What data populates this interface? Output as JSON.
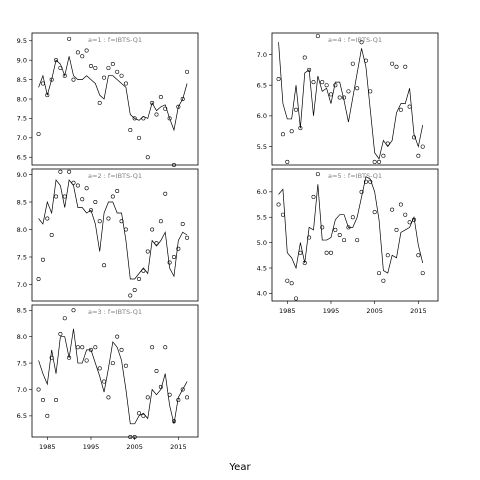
{
  "chart_data": {
    "type": "line",
    "xlabel": "Year",
    "x_tick_labels": [
      "1985",
      "1995",
      "2005",
      "2015"
    ],
    "years": [
      1983,
      1984,
      1985,
      1986,
      1987,
      1988,
      1989,
      1990,
      1991,
      1992,
      1993,
      1994,
      1995,
      1996,
      1997,
      1998,
      1999,
      2000,
      2001,
      2002,
      2003,
      2004,
      2005,
      2006,
      2007,
      2008,
      2009,
      2010,
      2011,
      2012,
      2013,
      2014,
      2015,
      2016,
      2017
    ],
    "panels": [
      {
        "label": "a=1 : f=IBTS-Q1",
        "ylim": [
          6.3,
          9.7
        ],
        "yticks": [
          "6.5",
          "7.0",
          "7.5",
          "8.0",
          "8.5",
          "9.0",
          "9.5"
        ],
        "fitted": [
          8.3,
          8.6,
          8.1,
          8.5,
          9.0,
          8.9,
          8.6,
          9.1,
          8.6,
          8.5,
          8.5,
          8.6,
          8.5,
          8.4,
          8.1,
          8.0,
          8.6,
          8.6,
          8.5,
          8.4,
          8.3,
          7.6,
          7.5,
          7.45,
          7.55,
          7.5,
          7.9,
          7.7,
          7.8,
          7.85,
          7.5,
          7.2,
          7.8,
          8.0,
          8.4
        ],
        "observed": [
          7.1,
          8.4,
          8.1,
          8.5,
          9.0,
          8.8,
          8.6,
          9.55,
          8.5,
          9.2,
          9.1,
          9.25,
          8.85,
          8.8,
          7.9,
          8.55,
          8.8,
          8.9,
          8.7,
          8.6,
          8.4,
          7.2,
          7.5,
          7.0,
          7.5,
          6.5,
          7.9,
          7.6,
          8.05,
          7.75,
          7.5,
          6.3,
          7.8,
          8.0,
          8.7
        ]
      },
      {
        "label": "a=2 : f=IBTS-Q1",
        "ylim": [
          6.7,
          9.1
        ],
        "yticks": [
          "7.0",
          "7.5",
          "8.0",
          "8.5",
          "9.0"
        ],
        "fitted": [
          8.2,
          8.1,
          8.5,
          8.3,
          8.9,
          8.8,
          8.4,
          8.9,
          8.8,
          8.4,
          8.4,
          8.3,
          8.35,
          8.1,
          7.6,
          8.3,
          8.5,
          8.5,
          8.3,
          8.3,
          7.8,
          7.1,
          7.1,
          7.2,
          7.3,
          7.2,
          7.8,
          7.7,
          7.8,
          7.95,
          7.3,
          7.15,
          7.8,
          7.95,
          7.9
        ],
        "observed": [
          7.1,
          7.45,
          8.2,
          7.9,
          8.6,
          9.05,
          8.6,
          9.05,
          8.85,
          8.8,
          8.55,
          8.75,
          8.35,
          8.5,
          8.15,
          7.35,
          8.2,
          8.6,
          8.7,
          8.15,
          8.0,
          6.8,
          6.9,
          7.1,
          7.25,
          7.6,
          8.0,
          7.75,
          8.15,
          8.65,
          7.4,
          7.5,
          7.65,
          8.1,
          7.85
        ]
      },
      {
        "label": "a=3 : f=IBTS-Q1",
        "ylim": [
          6.1,
          8.6
        ],
        "yticks": [
          "6.5",
          "7.0",
          "7.5",
          "8.0",
          "8.5"
        ],
        "fitted": [
          7.55,
          7.3,
          7.1,
          7.75,
          7.3,
          8.0,
          8.0,
          7.6,
          8.15,
          7.5,
          7.5,
          7.75,
          7.75,
          7.5,
          7.25,
          6.95,
          7.4,
          7.9,
          7.8,
          7.55,
          7.0,
          6.35,
          6.35,
          6.5,
          6.55,
          6.45,
          7.0,
          6.9,
          7.0,
          7.3,
          6.7,
          6.35,
          6.85,
          7.0,
          7.15
        ],
        "observed": [
          7.0,
          6.8,
          6.5,
          7.6,
          6.8,
          8.05,
          8.35,
          7.6,
          8.5,
          7.8,
          7.8,
          7.55,
          7.75,
          7.8,
          7.4,
          7.15,
          6.85,
          7.5,
          8.0,
          7.75,
          7.45,
          6.1,
          6.1,
          6.55,
          6.5,
          6.85,
          7.8,
          7.35,
          7.05,
          7.8,
          6.9,
          6.4,
          6.8,
          7.0,
          6.85
        ]
      },
      {
        "label": "a=4 : f=IBTS-Q1",
        "ylim": [
          5.2,
          7.35
        ],
        "yticks": [
          "5.5",
          "6.0",
          "6.5",
          "7.0"
        ],
        "fitted": [
          7.2,
          6.2,
          5.95,
          5.95,
          6.5,
          5.8,
          6.7,
          6.75,
          6.0,
          6.65,
          6.4,
          6.45,
          6.2,
          6.55,
          6.55,
          6.25,
          5.9,
          6.3,
          6.7,
          7.1,
          6.8,
          6.1,
          5.4,
          5.3,
          5.6,
          5.5,
          5.6,
          6.05,
          6.2,
          6.2,
          6.45,
          5.7,
          5.5,
          5.85,
          null
        ],
        "observed": [
          6.6,
          5.7,
          5.25,
          5.75,
          6.1,
          5.8,
          6.95,
          6.75,
          6.55,
          7.3,
          6.55,
          6.5,
          6.35,
          6.5,
          6.3,
          6.3,
          6.4,
          6.85,
          6.45,
          7.2,
          6.9,
          6.4,
          5.25,
          5.25,
          5.35,
          5.55,
          6.85,
          6.8,
          6.1,
          6.8,
          6.15,
          5.65,
          5.35,
          5.5,
          null
        ]
      },
      {
        "label": "a=5 : f=IBTS-Q1",
        "ylim": [
          3.85,
          6.45
        ],
        "yticks": [
          "4.0",
          "4.5",
          "5.0",
          "5.5",
          "6.0"
        ],
        "fitted": [
          5.95,
          6.05,
          4.8,
          4.7,
          4.5,
          5.0,
          4.6,
          5.3,
          5.25,
          6.15,
          5.05,
          5.05,
          5.1,
          5.45,
          5.55,
          5.55,
          5.3,
          5.3,
          5.5,
          5.9,
          6.3,
          6.25,
          6.0,
          5.45,
          4.45,
          4.4,
          4.75,
          4.7,
          5.2,
          5.25,
          5.3,
          5.5,
          4.95,
          4.6,
          null
        ],
        "observed": [
          5.75,
          5.55,
          4.25,
          4.2,
          3.9,
          4.8,
          4.6,
          5.1,
          5.9,
          6.35,
          5.3,
          4.8,
          4.8,
          5.25,
          5.15,
          5.05,
          5.3,
          5.5,
          5.05,
          6.0,
          6.2,
          6.2,
          5.6,
          4.4,
          4.25,
          4.75,
          5.65,
          5.25,
          5.75,
          5.55,
          5.4,
          5.45,
          4.75,
          4.4,
          null
        ]
      }
    ]
  }
}
